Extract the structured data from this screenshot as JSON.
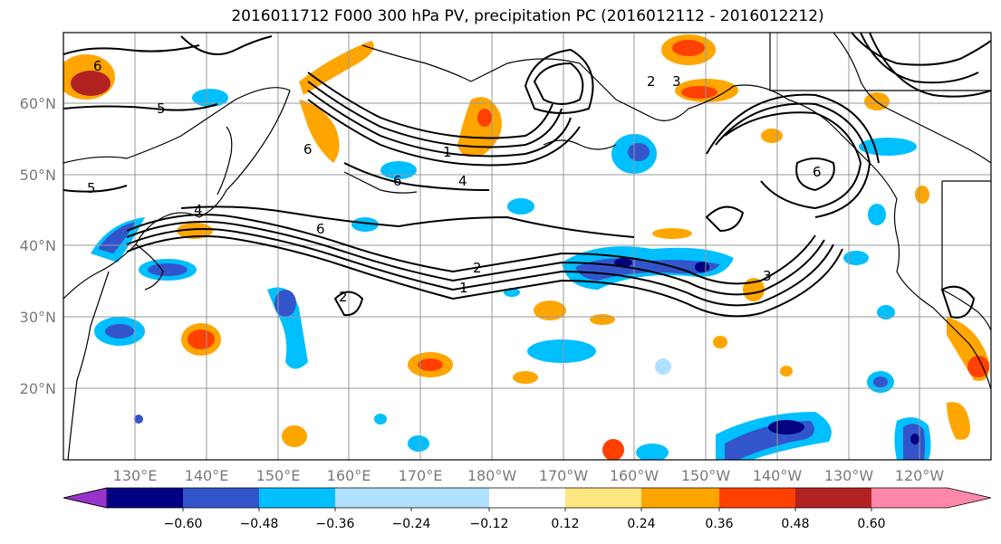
{
  "title": "2016011712 F000 300 hPa PV, precipitation PC (2016012112 - 2016012212)",
  "lat_labels": [
    "60°N",
    "50°N",
    "40°N",
    "30°N",
    "20°N"
  ],
  "lon_labels": [
    "130°E",
    "140°E",
    "150°E",
    "160°E",
    "170°E",
    "180°W",
    "170°W",
    "160°W",
    "150°W",
    "140°W",
    "130°W",
    "120°W"
  ],
  "colorbar": {
    "tick_labels": [
      "−0.60",
      "−0.48",
      "−0.36",
      "−0.24",
      "−0.12",
      "0.12",
      "0.24",
      "0.36",
      "0.48",
      "0.60"
    ],
    "colors": [
      "#9933cc",
      "#000080",
      "#3355cc",
      "#00bfff",
      "#b0e0ff",
      "#ffffff",
      "#ffe680",
      "#ffa500",
      "#ff4000",
      "#b22222",
      "#ff88aa"
    ]
  },
  "contour_labels": [
    "1",
    "2",
    "3",
    "4",
    "5",
    "6"
  ]
}
